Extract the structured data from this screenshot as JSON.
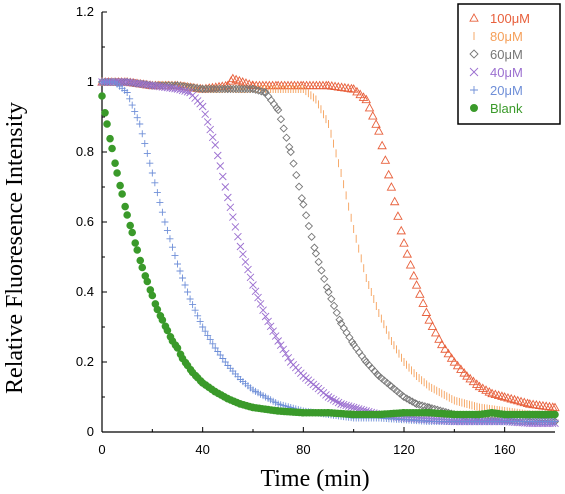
{
  "chart_data": {
    "type": "scatter",
    "title": "",
    "xlabel": "Time (min)",
    "ylabel": "Relative Fluoresence Intensity",
    "xlim": [
      0,
      180
    ],
    "ylim": [
      0,
      1.2
    ],
    "x_ticks": [
      "0",
      "40",
      "80",
      "120",
      "160"
    ],
    "x_tick_values": [
      0,
      40,
      80,
      120,
      160
    ],
    "y_ticks": [
      "0",
      "0.2",
      "0.4",
      "0.6",
      "0.8",
      "1",
      "1.2"
    ],
    "y_tick_values": [
      0,
      0.2,
      0.4,
      0.6,
      0.8,
      1.0,
      1.2
    ],
    "grid": false,
    "legend_position": "top-right",
    "series": [
      {
        "name": "100μM",
        "marker": "triangle",
        "color": "#e8603c",
        "points": [
          [
            0,
            1.0
          ],
          [
            10,
            1.0
          ],
          [
            20,
            0.99
          ],
          [
            30,
            0.99
          ],
          [
            40,
            0.98
          ],
          [
            50,
            0.99
          ],
          [
            52,
            1.01
          ],
          [
            60,
            0.99
          ],
          [
            70,
            0.99
          ],
          [
            80,
            0.99
          ],
          [
            90,
            0.99
          ],
          [
            100,
            0.98
          ],
          [
            105,
            0.95
          ],
          [
            110,
            0.86
          ],
          [
            115,
            0.7
          ],
          [
            120,
            0.54
          ],
          [
            125,
            0.42
          ],
          [
            130,
            0.32
          ],
          [
            135,
            0.25
          ],
          [
            140,
            0.2
          ],
          [
            145,
            0.16
          ],
          [
            150,
            0.13
          ],
          [
            155,
            0.11
          ],
          [
            160,
            0.1
          ],
          [
            170,
            0.08
          ],
          [
            180,
            0.07
          ]
        ]
      },
      {
        "name": "80μM",
        "marker": "vline",
        "color": "#f5a05a",
        "points": [
          [
            0,
            1.0
          ],
          [
            10,
            1.0
          ],
          [
            20,
            0.99
          ],
          [
            30,
            0.99
          ],
          [
            40,
            0.98
          ],
          [
            50,
            0.98
          ],
          [
            60,
            0.98
          ],
          [
            70,
            0.98
          ],
          [
            80,
            0.98
          ],
          [
            85,
            0.95
          ],
          [
            90,
            0.88
          ],
          [
            95,
            0.74
          ],
          [
            100,
            0.58
          ],
          [
            105,
            0.44
          ],
          [
            110,
            0.34
          ],
          [
            115,
            0.26
          ],
          [
            120,
            0.2
          ],
          [
            125,
            0.16
          ],
          [
            130,
            0.13
          ],
          [
            135,
            0.11
          ],
          [
            140,
            0.09
          ],
          [
            150,
            0.07
          ],
          [
            160,
            0.06
          ],
          [
            170,
            0.05
          ],
          [
            180,
            0.05
          ]
        ]
      },
      {
        "name": "60μM",
        "marker": "diamond",
        "color": "#777777",
        "points": [
          [
            0,
            1.0
          ],
          [
            10,
            1.0
          ],
          [
            20,
            0.99
          ],
          [
            30,
            0.99
          ],
          [
            40,
            0.98
          ],
          [
            50,
            0.98
          ],
          [
            60,
            0.98
          ],
          [
            65,
            0.97
          ],
          [
            70,
            0.92
          ],
          [
            75,
            0.8
          ],
          [
            80,
            0.65
          ],
          [
            85,
            0.51
          ],
          [
            90,
            0.4
          ],
          [
            95,
            0.31
          ],
          [
            100,
            0.25
          ],
          [
            105,
            0.2
          ],
          [
            110,
            0.16
          ],
          [
            115,
            0.13
          ],
          [
            120,
            0.1
          ],
          [
            125,
            0.08
          ],
          [
            130,
            0.07
          ],
          [
            140,
            0.05
          ],
          [
            150,
            0.04
          ],
          [
            160,
            0.035
          ],
          [
            170,
            0.03
          ],
          [
            180,
            0.03
          ]
        ]
      },
      {
        "name": "40μM",
        "marker": "cross",
        "color": "#9b6fd0",
        "points": [
          [
            0,
            1.0
          ],
          [
            10,
            1.0
          ],
          [
            20,
            0.99
          ],
          [
            30,
            0.98
          ],
          [
            35,
            0.97
          ],
          [
            40,
            0.93
          ],
          [
            45,
            0.82
          ],
          [
            50,
            0.67
          ],
          [
            55,
            0.53
          ],
          [
            60,
            0.42
          ],
          [
            65,
            0.33
          ],
          [
            70,
            0.26
          ],
          [
            75,
            0.2
          ],
          [
            80,
            0.16
          ],
          [
            85,
            0.13
          ],
          [
            90,
            0.1
          ],
          [
            95,
            0.08
          ],
          [
            100,
            0.07
          ],
          [
            110,
            0.05
          ],
          [
            120,
            0.04
          ],
          [
            130,
            0.035
          ],
          [
            140,
            0.03
          ],
          [
            150,
            0.03
          ],
          [
            160,
            0.03
          ],
          [
            170,
            0.025
          ],
          [
            180,
            0.025
          ]
        ]
      },
      {
        "name": "20μM",
        "marker": "plus",
        "color": "#6f8fd8",
        "points": [
          [
            0,
            1.0
          ],
          [
            5,
            1.0
          ],
          [
            10,
            0.97
          ],
          [
            15,
            0.88
          ],
          [
            20,
            0.74
          ],
          [
            25,
            0.6
          ],
          [
            30,
            0.48
          ],
          [
            35,
            0.38
          ],
          [
            40,
            0.3
          ],
          [
            45,
            0.24
          ],
          [
            50,
            0.19
          ],
          [
            55,
            0.15
          ],
          [
            60,
            0.12
          ],
          [
            65,
            0.1
          ],
          [
            70,
            0.08
          ],
          [
            80,
            0.06
          ],
          [
            90,
            0.05
          ],
          [
            100,
            0.04
          ],
          [
            110,
            0.04
          ],
          [
            120,
            0.035
          ],
          [
            130,
            0.03
          ],
          [
            140,
            0.03
          ],
          [
            150,
            0.03
          ],
          [
            160,
            0.03
          ],
          [
            170,
            0.03
          ],
          [
            180,
            0.03
          ]
        ]
      },
      {
        "name": "Blank",
        "marker": "dot",
        "color": "#3a9a2a",
        "points": [
          [
            0,
            0.96
          ],
          [
            2,
            0.88
          ],
          [
            4,
            0.81
          ],
          [
            6,
            0.74
          ],
          [
            8,
            0.68
          ],
          [
            10,
            0.62
          ],
          [
            12,
            0.57
          ],
          [
            14,
            0.52
          ],
          [
            16,
            0.47
          ],
          [
            18,
            0.43
          ],
          [
            20,
            0.39
          ],
          [
            22,
            0.35
          ],
          [
            24,
            0.32
          ],
          [
            26,
            0.29
          ],
          [
            28,
            0.26
          ],
          [
            30,
            0.24
          ],
          [
            32,
            0.21
          ],
          [
            34,
            0.19
          ],
          [
            36,
            0.17
          ],
          [
            38,
            0.155
          ],
          [
            40,
            0.14
          ],
          [
            45,
            0.115
          ],
          [
            50,
            0.095
          ],
          [
            55,
            0.08
          ],
          [
            60,
            0.07
          ],
          [
            70,
            0.06
          ],
          [
            80,
            0.055
          ],
          [
            90,
            0.055
          ],
          [
            100,
            0.05
          ],
          [
            110,
            0.05
          ],
          [
            120,
            0.055
          ],
          [
            130,
            0.055
          ],
          [
            140,
            0.05
          ],
          [
            150,
            0.05
          ],
          [
            155,
            0.055
          ],
          [
            160,
            0.05
          ],
          [
            170,
            0.05
          ],
          [
            180,
            0.05
          ]
        ]
      }
    ]
  }
}
